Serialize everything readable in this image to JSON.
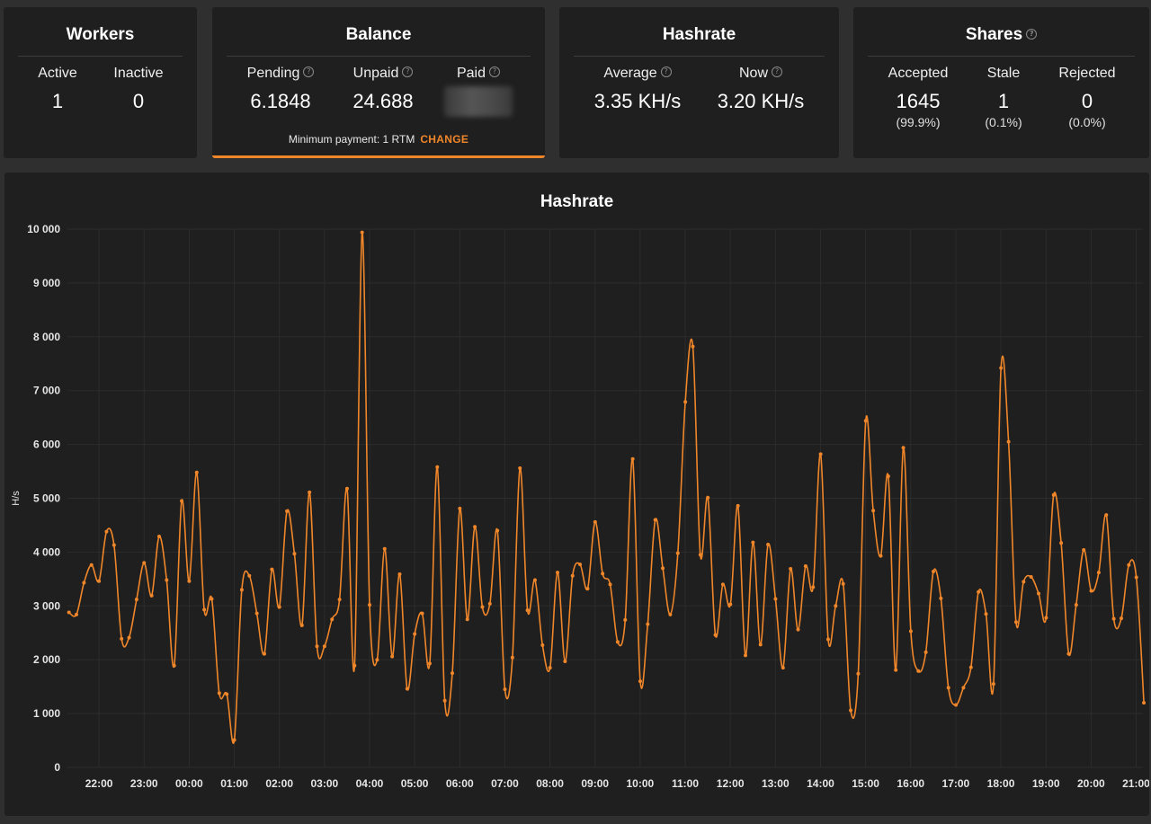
{
  "workers": {
    "title": "Workers",
    "active_label": "Active",
    "active_value": "1",
    "inactive_label": "Inactive",
    "inactive_value": "0"
  },
  "balance": {
    "title": "Balance",
    "pending_label": "Pending",
    "pending_value": "6.1848",
    "unpaid_label": "Unpaid",
    "unpaid_value": "24.688",
    "paid_label": "Paid",
    "min_payment_text": "Minimum payment: 1 RTM",
    "change_label": "CHANGE"
  },
  "hashrate_card": {
    "title": "Hashrate",
    "average_label": "Average",
    "average_value": "3.35 KH/s",
    "now_label": "Now",
    "now_value": "3.20 KH/s"
  },
  "shares": {
    "title": "Shares",
    "accepted_label": "Accepted",
    "accepted_value": "1645",
    "accepted_pct": "(99.9%)",
    "stale_label": "Stale",
    "stale_value": "1",
    "stale_pct": "(0.1%)",
    "rejected_label": "Rejected",
    "rejected_value": "0",
    "rejected_pct": "(0.0%)"
  },
  "colors": {
    "accent": "#f0862a",
    "panel": "#1f1f1f",
    "background": "#2f2f2f"
  },
  "icons": {
    "help": "question-circle-icon"
  },
  "chart_data": {
    "type": "line",
    "title": "Hashrate",
    "ylabel": "H/s",
    "xlabel": "",
    "ylim": [
      0,
      10000
    ],
    "yticks": [
      0,
      1000,
      2000,
      3000,
      4000,
      5000,
      6000,
      7000,
      8000,
      9000,
      10000
    ],
    "ytick_labels": [
      "0",
      "1 000",
      "2 000",
      "3 000",
      "4 000",
      "5 000",
      "6 000",
      "7 000",
      "8 000",
      "9 000",
      "10 000"
    ],
    "xlim_hours": [
      21.3,
      45.15
    ],
    "xticks": [
      22,
      23,
      24,
      25,
      26,
      27,
      28,
      29,
      30,
      31,
      32,
      33,
      34,
      35,
      36,
      37,
      38,
      39,
      40,
      41,
      42,
      43,
      44,
      45
    ],
    "xtick_labels": [
      "22:00",
      "23:00",
      "00:00",
      "01:00",
      "02:00",
      "03:00",
      "04:00",
      "05:00",
      "06:00",
      "07:00",
      "08:00",
      "09:00",
      "10:00",
      "11:00",
      "12:00",
      "13:00",
      "14:00",
      "15:00",
      "16:00",
      "17:00",
      "18:00",
      "19:00",
      "20:00",
      "21:00"
    ],
    "grid": true,
    "series": [
      {
        "color": "#f0862a",
        "x_start_hour": 21.333,
        "x_step_hours": 0.1667,
        "values": [
          2880,
          2840,
          3430,
          3760,
          3460,
          4380,
          4130,
          2390,
          2410,
          3120,
          3800,
          3190,
          4290,
          3480,
          1890,
          4950,
          3460,
          5480,
          2930,
          3130,
          1380,
          1360,
          510,
          3300,
          3560,
          2860,
          2110,
          3680,
          2980,
          4760,
          3970,
          2640,
          5110,
          2250,
          2250,
          2750,
          3120,
          5180,
          1890,
          9940,
          3020,
          2000,
          4060,
          2060,
          3590,
          1460,
          2480,
          2860,
          1930,
          5580,
          1240,
          1750,
          4810,
          2750,
          4470,
          2980,
          3040,
          4400,
          1450,
          2040,
          5560,
          2920,
          3480,
          2270,
          1850,
          3620,
          1970,
          3560,
          3770,
          3320,
          4560,
          3600,
          3400,
          2330,
          2740,
          5730,
          1600,
          2660,
          4600,
          3700,
          2840,
          3980,
          6790,
          7820,
          3950,
          5010,
          2460,
          3400,
          3030,
          4860,
          2080,
          4180,
          2280,
          4140,
          3130,
          1850,
          3690,
          2560,
          3740,
          3350,
          5820,
          2380,
          3000,
          3410,
          1060,
          1740,
          6440,
          4770,
          3930,
          5410,
          1810,
          5940,
          2530,
          1790,
          2140,
          3640,
          3140,
          1480,
          1160,
          1480,
          1860,
          3260,
          2850,
          1550,
          7420,
          6050,
          2700,
          3450,
          3540,
          3230,
          2780,
          5060,
          4170,
          2110,
          3020,
          4040,
          3280,
          3620,
          4690,
          2760,
          2770,
          3760,
          3530,
          1200
        ]
      }
    ]
  }
}
